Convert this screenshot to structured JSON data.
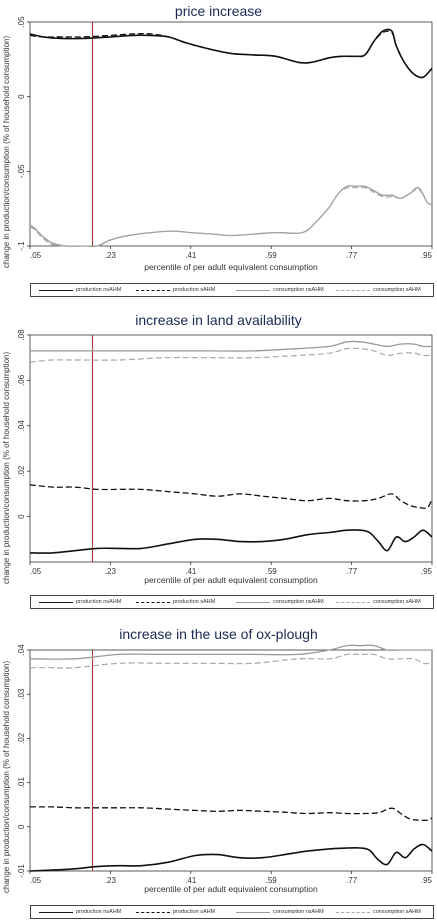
{
  "chart_data": [
    {
      "type": "line",
      "title": "price increase",
      "xlabel": "percentile of per adult equivalent consumption",
      "ylabel": "change in production/consumption (% of household consumption)",
      "xlim": [
        0.05,
        0.95
      ],
      "ylim": [
        -0.1,
        0.05
      ],
      "xticks": [
        ".05",
        ".23",
        ".41",
        ".59",
        ".77",
        ".95"
      ],
      "yticks": [
        {
          "v": 0.05,
          "label": ".05"
        },
        {
          "v": 0,
          "label": "0"
        },
        {
          "v": -0.05,
          "label": "-.05"
        },
        {
          "v": -0.1,
          "label": "-.1"
        }
      ],
      "vline": 0.19,
      "series": [
        {
          "name": "production nsAHM",
          "style": "solid-black",
          "x": [
            0.05,
            0.08,
            0.12,
            0.17,
            0.23,
            0.28,
            0.32,
            0.36,
            0.4,
            0.45,
            0.5,
            0.55,
            0.6,
            0.65,
            0.68,
            0.72,
            0.75,
            0.78,
            0.8,
            0.82,
            0.84,
            0.86,
            0.87,
            0.89,
            0.91,
            0.93,
            0.95
          ],
          "y": [
            0.042,
            0.04,
            0.039,
            0.039,
            0.04,
            0.041,
            0.041,
            0.04,
            0.036,
            0.032,
            0.029,
            0.028,
            0.027,
            0.023,
            0.023,
            0.026,
            0.027,
            0.027,
            0.028,
            0.037,
            0.044,
            0.044,
            0.034,
            0.022,
            0.015,
            0.013,
            0.019
          ]
        },
        {
          "name": "production sAHM",
          "style": "dash-black",
          "x": [
            0.05,
            0.08,
            0.12,
            0.17,
            0.23,
            0.28,
            0.32,
            0.36,
            0.4,
            0.45,
            0.5,
            0.55,
            0.6,
            0.65,
            0.68,
            0.72,
            0.75,
            0.78,
            0.8,
            0.82,
            0.84,
            0.86,
            0.87,
            0.89,
            0.91,
            0.93,
            0.95
          ],
          "y": [
            0.041,
            0.04,
            0.04,
            0.04,
            0.041,
            0.042,
            0.042,
            0.04,
            0.036,
            0.032,
            0.029,
            0.028,
            0.027,
            0.023,
            0.023,
            0.026,
            0.027,
            0.027,
            0.028,
            0.037,
            0.043,
            0.043,
            0.034,
            0.022,
            0.015,
            0.013,
            0.019
          ]
        },
        {
          "name": "consumption nsAHM",
          "style": "solid-gray",
          "x": [
            0.05,
            0.06,
            0.08,
            0.1,
            0.13,
            0.17,
            0.2,
            0.23,
            0.27,
            0.32,
            0.37,
            0.41,
            0.46,
            0.5,
            0.55,
            0.6,
            0.66,
            0.69,
            0.72,
            0.74,
            0.76,
            0.78,
            0.8,
            0.82,
            0.84,
            0.86,
            0.88,
            0.9,
            0.92,
            0.94,
            0.95
          ],
          "y": [
            -0.086,
            -0.088,
            -0.094,
            -0.098,
            -0.1,
            -0.1,
            -0.1,
            -0.096,
            -0.093,
            -0.091,
            -0.09,
            -0.091,
            -0.092,
            -0.093,
            -0.092,
            -0.091,
            -0.091,
            -0.084,
            -0.074,
            -0.065,
            -0.06,
            -0.06,
            -0.06,
            -0.063,
            -0.066,
            -0.066,
            -0.068,
            -0.065,
            -0.061,
            -0.071,
            -0.072
          ]
        },
        {
          "name": "consumption sAHM",
          "style": "dash-gray",
          "x": [
            0.05,
            0.06,
            0.08,
            0.1,
            0.13,
            0.17,
            0.2,
            0.23,
            0.27,
            0.32,
            0.37,
            0.41,
            0.46,
            0.5,
            0.55,
            0.6,
            0.66,
            0.69,
            0.72,
            0.74,
            0.76,
            0.78,
            0.8,
            0.82,
            0.84,
            0.86,
            0.88,
            0.9,
            0.92,
            0.94,
            0.95
          ],
          "y": [
            -0.087,
            -0.089,
            -0.095,
            -0.099,
            -0.1,
            -0.1,
            -0.1,
            -0.096,
            -0.093,
            -0.091,
            -0.09,
            -0.091,
            -0.092,
            -0.093,
            -0.092,
            -0.091,
            -0.091,
            -0.084,
            -0.074,
            -0.065,
            -0.061,
            -0.061,
            -0.061,
            -0.064,
            -0.067,
            -0.067,
            -0.068,
            -0.065,
            -0.062,
            -0.071,
            -0.072
          ]
        }
      ],
      "legend": [
        "production nsAHM",
        "production sAHM",
        "consumption nsAHM",
        "consumption sAHM"
      ]
    },
    {
      "type": "line",
      "title": "increase in land availability",
      "xlabel": "percentile of per adult equivalent consumption",
      "ylabel": "change in production/consumption (% of household consumption)",
      "xlim": [
        0.05,
        0.95
      ],
      "ylim": [
        -0.02,
        0.08
      ],
      "xticks": [
        ".05",
        ".23",
        ".41",
        ".59",
        ".77",
        ".95"
      ],
      "yticks": [
        {
          "v": 0.08,
          "label": ".08"
        },
        {
          "v": 0.06,
          "label": ".06"
        },
        {
          "v": 0.04,
          "label": ".04"
        },
        {
          "v": 0.02,
          "label": ".02"
        },
        {
          "v": 0,
          "label": "0"
        }
      ],
      "vline": 0.19,
      "series": [
        {
          "name": "consumption nsAHM",
          "style": "solid-gray",
          "x": [
            0.05,
            0.15,
            0.25,
            0.35,
            0.45,
            0.55,
            0.65,
            0.72,
            0.76,
            0.79,
            0.82,
            0.85,
            0.88,
            0.91,
            0.93,
            0.95
          ],
          "y": [
            0.073,
            0.073,
            0.073,
            0.073,
            0.073,
            0.073,
            0.074,
            0.075,
            0.077,
            0.077,
            0.076,
            0.075,
            0.076,
            0.076,
            0.075,
            0.075
          ]
        },
        {
          "name": "consumption sAHM",
          "style": "dash-gray",
          "x": [
            0.05,
            0.1,
            0.15,
            0.25,
            0.35,
            0.45,
            0.55,
            0.65,
            0.72,
            0.76,
            0.79,
            0.82,
            0.85,
            0.88,
            0.91,
            0.93,
            0.95
          ],
          "y": [
            0.068,
            0.069,
            0.069,
            0.069,
            0.07,
            0.07,
            0.07,
            0.071,
            0.072,
            0.074,
            0.074,
            0.073,
            0.071,
            0.072,
            0.072,
            0.071,
            0.071
          ]
        },
        {
          "name": "production sAHM",
          "style": "dash-black",
          "x": [
            0.05,
            0.1,
            0.15,
            0.2,
            0.25,
            0.3,
            0.36,
            0.42,
            0.47,
            0.52,
            0.57,
            0.62,
            0.67,
            0.72,
            0.76,
            0.8,
            0.83,
            0.86,
            0.88,
            0.9,
            0.92,
            0.94,
            0.95
          ],
          "y": [
            0.014,
            0.013,
            0.013,
            0.012,
            0.012,
            0.012,
            0.011,
            0.01,
            0.009,
            0.01,
            0.009,
            0.008,
            0.007,
            0.008,
            0.007,
            0.007,
            0.008,
            0.01,
            0.007,
            0.005,
            0.004,
            0.004,
            0.008
          ]
        },
        {
          "name": "production nsAHM",
          "style": "solid-black",
          "x": [
            0.05,
            0.1,
            0.15,
            0.2,
            0.25,
            0.3,
            0.36,
            0.42,
            0.47,
            0.52,
            0.57,
            0.62,
            0.67,
            0.72,
            0.76,
            0.79,
            0.81,
            0.83,
            0.85,
            0.87,
            0.89,
            0.91,
            0.93,
            0.95
          ],
          "y": [
            -0.016,
            -0.016,
            -0.015,
            -0.014,
            -0.014,
            -0.014,
            -0.012,
            -0.01,
            -0.01,
            -0.011,
            -0.011,
            -0.01,
            -0.008,
            -0.007,
            -0.006,
            -0.006,
            -0.007,
            -0.011,
            -0.015,
            -0.009,
            -0.011,
            -0.009,
            -0.006,
            -0.009
          ]
        }
      ],
      "legend": [
        "production nsAHM",
        "production sAHM",
        "consumption nsAHM",
        "consumption sAHM"
      ]
    },
    {
      "type": "line",
      "title": "increase in the use of ox-plough",
      "xlabel": "percentile of per adult equivalent consumption",
      "ylabel": "change in production/consumption (% of household consumption)",
      "xlim": [
        0.05,
        0.95
      ],
      "ylim": [
        -0.01,
        0.04
      ],
      "xticks": [
        ".05",
        ".23",
        ".41",
        ".59",
        ".77",
        ".95"
      ],
      "yticks": [
        {
          "v": 0.04,
          "label": ".04"
        },
        {
          "v": 0.03,
          "label": ".03"
        },
        {
          "v": 0.02,
          "label": ".02"
        },
        {
          "v": 0.01,
          "label": ".01"
        },
        {
          "v": 0,
          "label": "0"
        },
        {
          "v": -0.01,
          "label": "-.01"
        }
      ],
      "vline": 0.19,
      "series": [
        {
          "name": "consumption nsAHM",
          "style": "solid-gray",
          "x": [
            0.05,
            0.15,
            0.25,
            0.35,
            0.45,
            0.55,
            0.65,
            0.72,
            0.76,
            0.79,
            0.82,
            0.85,
            0.88,
            0.91,
            0.93,
            0.95
          ],
          "y": [
            0.038,
            0.038,
            0.039,
            0.039,
            0.039,
            0.039,
            0.039,
            0.04,
            0.041,
            0.041,
            0.041,
            0.04,
            0.04,
            0.04,
            0.04,
            0.04
          ]
        },
        {
          "name": "consumption sAHM",
          "style": "dash-gray",
          "x": [
            0.05,
            0.1,
            0.15,
            0.25,
            0.35,
            0.45,
            0.55,
            0.65,
            0.72,
            0.76,
            0.79,
            0.82,
            0.85,
            0.88,
            0.91,
            0.93,
            0.95
          ],
          "y": [
            0.036,
            0.036,
            0.036,
            0.037,
            0.037,
            0.037,
            0.037,
            0.038,
            0.038,
            0.039,
            0.039,
            0.039,
            0.038,
            0.038,
            0.038,
            0.037,
            0.037
          ]
        },
        {
          "name": "production sAHM",
          "style": "dash-black",
          "x": [
            0.05,
            0.1,
            0.15,
            0.2,
            0.25,
            0.3,
            0.36,
            0.42,
            0.47,
            0.52,
            0.57,
            0.62,
            0.67,
            0.72,
            0.76,
            0.8,
            0.83,
            0.86,
            0.88,
            0.9,
            0.92,
            0.94,
            0.95
          ],
          "y": [
            0.0045,
            0.0045,
            0.0043,
            0.0043,
            0.0043,
            0.0043,
            0.004,
            0.0037,
            0.0035,
            0.0037,
            0.0035,
            0.0033,
            0.003,
            0.0032,
            0.003,
            0.003,
            0.0032,
            0.0042,
            0.003,
            0.0018,
            0.0015,
            0.0015,
            0.002
          ]
        },
        {
          "name": "production nsAHM",
          "style": "solid-black",
          "x": [
            0.05,
            0.1,
            0.15,
            0.2,
            0.25,
            0.3,
            0.36,
            0.42,
            0.47,
            0.52,
            0.57,
            0.62,
            0.67,
            0.72,
            0.76,
            0.79,
            0.81,
            0.83,
            0.85,
            0.87,
            0.89,
            0.91,
            0.93,
            0.95
          ],
          "y": [
            -0.01,
            -0.0098,
            -0.0095,
            -0.009,
            -0.0088,
            -0.0088,
            -0.008,
            -0.0065,
            -0.0063,
            -0.007,
            -0.007,
            -0.0063,
            -0.0055,
            -0.005,
            -0.0048,
            -0.0048,
            -0.0053,
            -0.0075,
            -0.0085,
            -0.0058,
            -0.007,
            -0.005,
            -0.004,
            -0.0055
          ]
        }
      ],
      "legend": [
        "production nsAHM",
        "production sAHM",
        "consumption nsAHM",
        "consumption sAHM"
      ]
    }
  ],
  "colors": {
    "black_series": "#111111",
    "gray_solid": "#9a9a9a",
    "gray_dash": "#a8a8a8",
    "vline": "#b03030",
    "title": "#1a2a55"
  }
}
